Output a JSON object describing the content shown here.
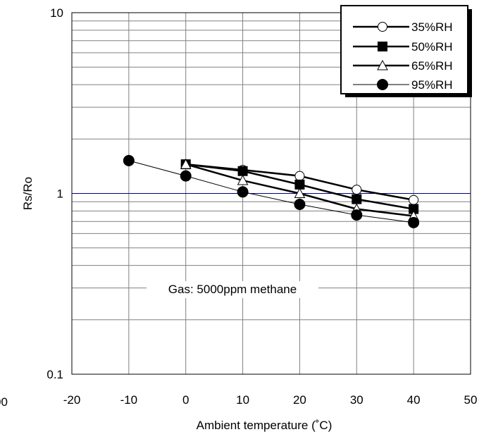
{
  "chart_data": {
    "type": "line",
    "x_scale": "linear",
    "y_scale": "log",
    "xlim": [
      -20,
      50
    ],
    "ylim": [
      0.1,
      10
    ],
    "x_ticks": [
      -20,
      -10,
      0,
      10,
      20,
      30,
      40,
      50
    ],
    "x_tick_labels": [
      "-20",
      "-10",
      "0",
      "10",
      "20",
      "30",
      "40",
      "50"
    ],
    "y_tick_labels": [
      "10",
      "1",
      "0.1"
    ],
    "stray_tick_label": "00",
    "xlabel": "Ambient temperature (˚C)",
    "ylabel": "Rs/Ro",
    "annotation": "Gas: 5000ppm methane",
    "grid": true,
    "legend_position": "top-right",
    "series": [
      {
        "name": "35%RH",
        "marker": "circle-open",
        "line": "bold",
        "x": [
          0,
          10,
          20,
          30,
          40
        ],
        "y": [
          1.45,
          1.35,
          1.25,
          1.05,
          0.92
        ]
      },
      {
        "name": "50%RH",
        "marker": "square-filled",
        "line": "bold",
        "x": [
          0,
          10,
          20,
          30,
          40
        ],
        "y": [
          1.45,
          1.33,
          1.12,
          0.93,
          0.82
        ]
      },
      {
        "name": "65%RH",
        "marker": "triangle-open",
        "line": "bold",
        "x": [
          0,
          10,
          20,
          30,
          40
        ],
        "y": [
          1.45,
          1.18,
          1.0,
          0.82,
          0.75
        ]
      },
      {
        "name": "95%RH",
        "marker": "circle-filled",
        "line": "thin",
        "x": [
          -10,
          0,
          10,
          20,
          30,
          40
        ],
        "y": [
          1.52,
          1.25,
          1.02,
          0.87,
          0.76,
          0.69
        ]
      }
    ]
  }
}
